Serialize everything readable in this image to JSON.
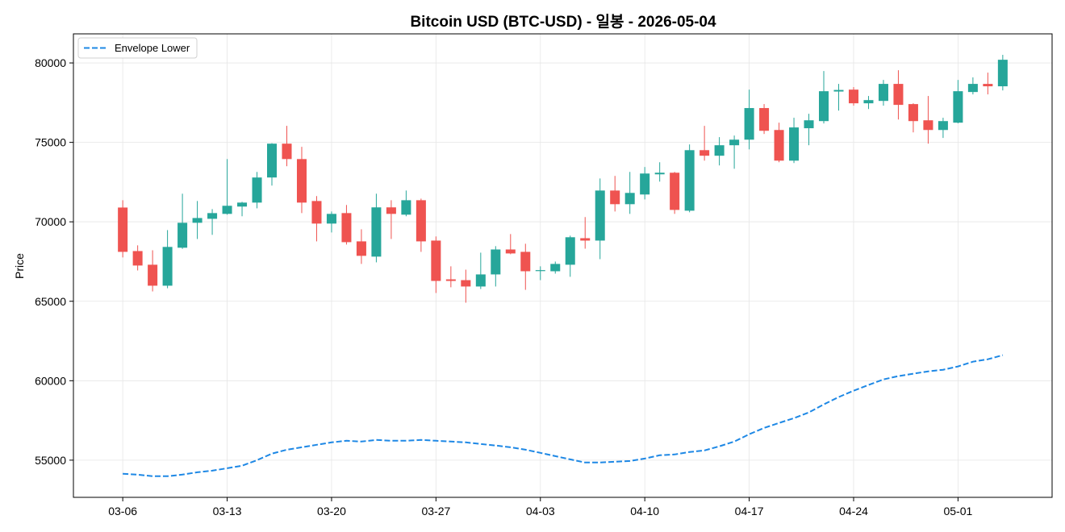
{
  "chart_data": {
    "type": "candlestick",
    "title": "Bitcoin USD (BTC-USD) - 일봉 - 2026-05-04",
    "ylabel": "Price",
    "x": [
      "03-06",
      "03-07",
      "03-08",
      "03-09",
      "03-10",
      "03-11",
      "03-12",
      "03-13",
      "03-14",
      "03-15",
      "03-16",
      "03-17",
      "03-18",
      "03-19",
      "03-20",
      "03-21",
      "03-22",
      "03-23",
      "03-24",
      "03-25",
      "03-26",
      "03-27",
      "03-28",
      "03-29",
      "03-30",
      "03-31",
      "04-01",
      "04-02",
      "04-03",
      "04-04",
      "04-05",
      "04-06",
      "04-07",
      "04-08",
      "04-09",
      "04-10",
      "04-11",
      "04-12",
      "04-13",
      "04-14",
      "04-15",
      "04-16",
      "04-17",
      "04-18",
      "04-19",
      "04-20",
      "04-21",
      "04-22",
      "04-23",
      "04-24",
      "04-25",
      "04-26",
      "04-27",
      "04-28",
      "04-29",
      "04-30",
      "05-01",
      "05-02",
      "05-03",
      "05-04"
    ],
    "xticks": [
      "03-06",
      "03-13",
      "03-20",
      "03-27",
      "04-03",
      "04-10",
      "04-17",
      "04-24",
      "05-01"
    ],
    "yticks": [
      55000,
      60000,
      65000,
      70000,
      75000,
      80000
    ],
    "ylim": [
      52660,
      81830
    ],
    "grid": true,
    "ohlc": {
      "open": [
        70900,
        68160,
        67300,
        65980,
        68370,
        69940,
        70190,
        70500,
        70960,
        71210,
        72790,
        74920,
        73950,
        71310,
        69890,
        70550,
        68770,
        67810,
        70910,
        70450,
        71360,
        68820,
        66380,
        66330,
        65930,
        66690,
        68260,
        68110,
        66900,
        66890,
        67300,
        68970,
        68820,
        71970,
        71110,
        71720,
        72990,
        73090,
        70700,
        74510,
        74160,
        74820,
        75170,
        77160,
        75780,
        73850,
        75890,
        76340,
        78200,
        78320,
        77460,
        77610,
        78680,
        77410,
        76390,
        75780,
        76240,
        78170,
        78680,
        78530
      ],
      "high": [
        71360,
        68520,
        68210,
        69480,
        71770,
        71310,
        70800,
        73950,
        71260,
        73140,
        74950,
        76040,
        74720,
        71620,
        70650,
        71060,
        69530,
        71770,
        71360,
        71970,
        71460,
        69080,
        67200,
        66990,
        68060,
        68470,
        69230,
        68620,
        67200,
        67500,
        69130,
        70300,
        72730,
        72890,
        73140,
        73450,
        73750,
        73140,
        74870,
        76040,
        75330,
        75430,
        78320,
        77410,
        76240,
        76550,
        76800,
        79490,
        78680,
        78480,
        77920,
        78930,
        79540,
        77460,
        77920,
        76550,
        78930,
        79090,
        79390,
        80510
      ],
      "low": [
        67760,
        66940,
        65620,
        65820,
        68300,
        68920,
        69180,
        70450,
        70350,
        70850,
        72280,
        73500,
        70550,
        68770,
        69330,
        68570,
        67350,
        67450,
        68920,
        70350,
        68110,
        65520,
        65880,
        64910,
        65770,
        65930,
        67960,
        65720,
        66330,
        66740,
        66540,
        68310,
        67650,
        70650,
        70500,
        71410,
        72530,
        70500,
        70600,
        73850,
        73550,
        73340,
        74560,
        75530,
        73750,
        73700,
        74820,
        76190,
        77000,
        77310,
        77100,
        77310,
        76440,
        75630,
        74920,
        75280,
        76200,
        78020,
        78020,
        78270
      ],
      "close": [
        68110,
        67250,
        65980,
        68420,
        69940,
        70240,
        70550,
        71010,
        71210,
        72790,
        74920,
        73950,
        71210,
        69890,
        70500,
        68720,
        67860,
        70910,
        70500,
        71360,
        68770,
        66280,
        66280,
        65930,
        66690,
        68260,
        68010,
        66890,
        66960,
        67350,
        69030,
        68820,
        71970,
        71110,
        71820,
        73040,
        73090,
        70750,
        74510,
        74160,
        74820,
        75170,
        77160,
        75730,
        73850,
        75940,
        76390,
        78220,
        78300,
        77460,
        77660,
        78680,
        77360,
        76340,
        75780,
        76340,
        78220,
        78680,
        78530,
        80200
      ]
    },
    "series": [
      {
        "name": "Envelope Lower",
        "type": "line",
        "linestyle": "dashed",
        "color": "#1e88e5",
        "values": [
          54140,
          54090,
          53990,
          53990,
          54090,
          54240,
          54340,
          54490,
          54650,
          55000,
          55410,
          55660,
          55810,
          55970,
          56120,
          56220,
          56170,
          56270,
          56220,
          56220,
          56270,
          56220,
          56170,
          56120,
          56020,
          55920,
          55810,
          55660,
          55460,
          55250,
          55050,
          54850,
          54850,
          54900,
          54950,
          55100,
          55310,
          55360,
          55510,
          55610,
          55870,
          56170,
          56630,
          57030,
          57340,
          57640,
          58000,
          58510,
          58970,
          59370,
          59730,
          60080,
          60290,
          60440,
          60590,
          60690,
          60900,
          61200,
          61350,
          61610
        ]
      }
    ],
    "legend": {
      "position": "top-left"
    },
    "colors": {
      "up": "#26a69a",
      "down": "#ef5350",
      "grid": "#e6e6e6",
      "frame": "#000000"
    }
  }
}
